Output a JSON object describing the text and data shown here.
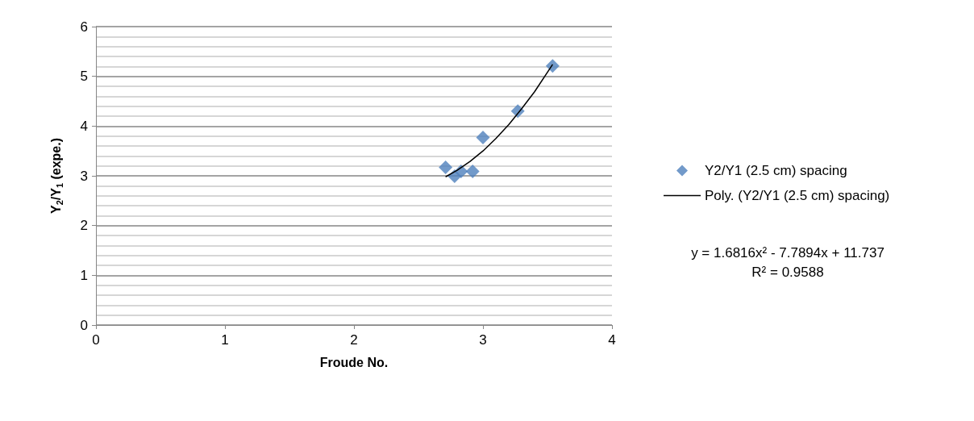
{
  "chart_data": {
    "type": "scatter",
    "xlabel": "Froude No.",
    "ylabel": "Y$_{2}$/Y$_{1}$ (expe.)",
    "xlim": [
      0,
      4
    ],
    "xticks": [
      0,
      1,
      2,
      3,
      4
    ],
    "ylim": [
      0,
      6
    ],
    "yticks": [
      0,
      1,
      2,
      3,
      4,
      5,
      6
    ],
    "grid": "y",
    "legend": "right",
    "series": [
      {
        "name": "Y2/Y1 (2.5 cm) spacing",
        "color": "#4f81bd",
        "marker": "diamond",
        "x": [
          2.71,
          2.78,
          2.83,
          2.92,
          3.0,
          3.27,
          3.54
        ],
        "values": [
          3.17,
          2.99,
          3.09,
          3.09,
          3.77,
          4.3,
          5.21
        ]
      },
      {
        "name": "Poly. (Y2/Y1 (2.5 cm) spacing)",
        "type": "line",
        "color": "#000000",
        "marker": "none",
        "line_style": "solid",
        "x": [
          2.71,
          2.8,
          2.9,
          3.0,
          3.1,
          3.2,
          3.3,
          3.4,
          3.54
        ],
        "values": [
          2.98,
          3.11,
          3.29,
          3.5,
          3.75,
          4.03,
          4.35,
          4.69,
          5.24
        ]
      }
    ],
    "annotations": [
      "y = 1.6816x² - 7.7894x + 11.737",
      "R² = 0.9588"
    ]
  }
}
